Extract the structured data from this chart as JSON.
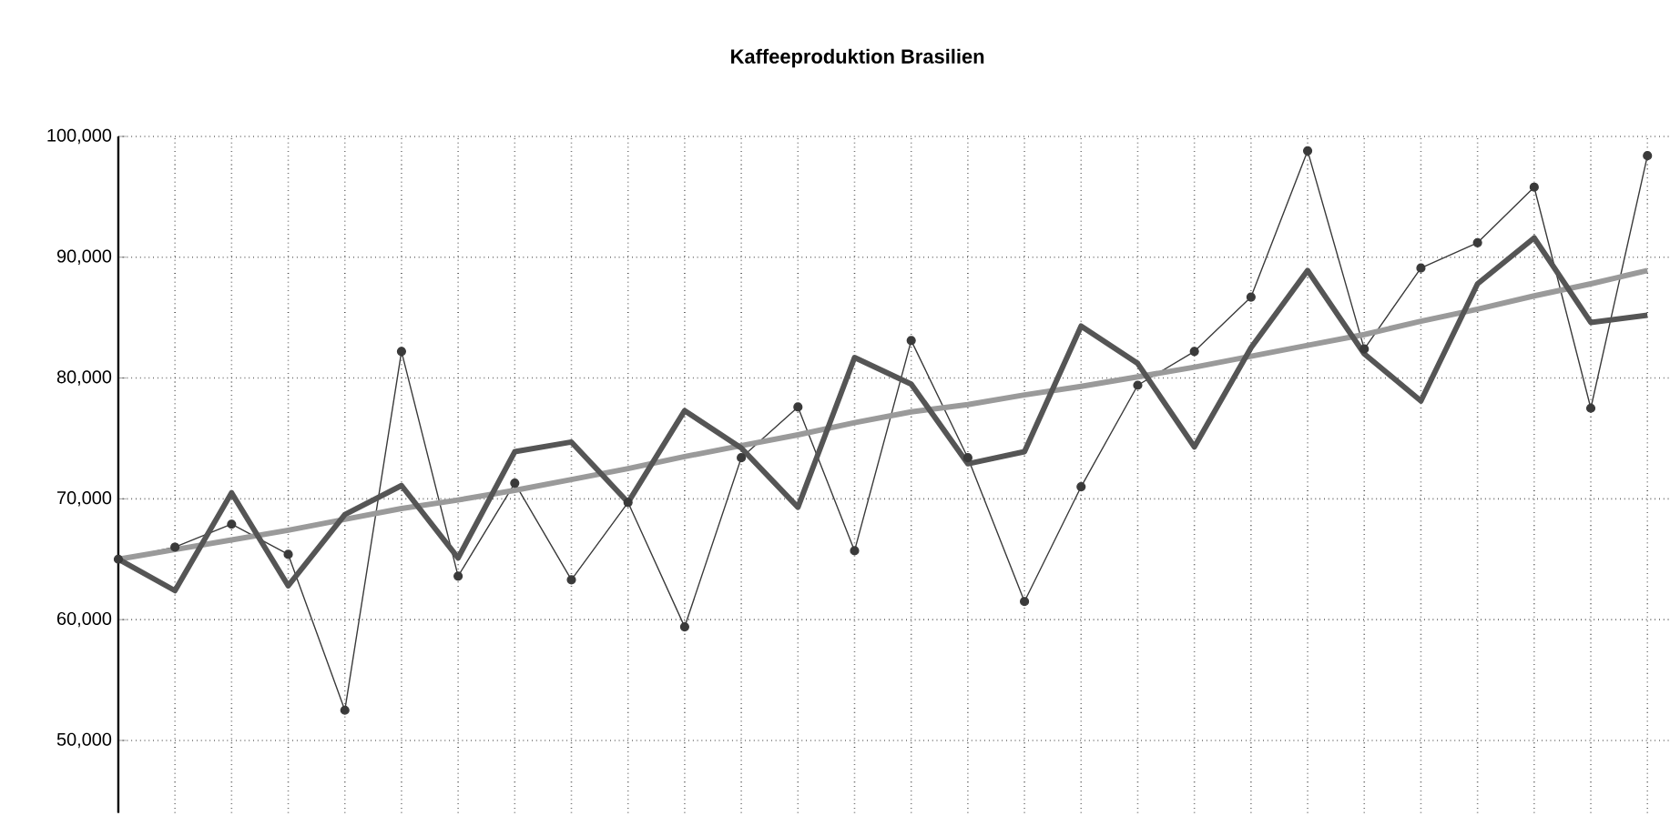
{
  "chart_data": {
    "type": "line",
    "title": "Kaffeeproduktion Brasilien",
    "categories": [
      null,
      null,
      null,
      null,
      null,
      null,
      null,
      null,
      null,
      null,
      null,
      null,
      null,
      null,
      null,
      null,
      null,
      null,
      null,
      null,
      null,
      null,
      null,
      null,
      null,
      null,
      null,
      null
    ],
    "series": [
      {
        "color": "#3a3a3a",
        "marker": "circle",
        "values": [
          65000,
          66000,
          67900,
          65400,
          52500,
          82200,
          63600,
          71300,
          63300,
          69700,
          59400,
          73400,
          77600,
          65700,
          83100,
          73400,
          61500,
          71000,
          79400,
          82200,
          86700,
          98800,
          82400,
          89100,
          91200,
          95800,
          77500,
          98400
        ]
      },
      {
        "color": "#9a9a9a",
        "values": [
          65000,
          65800,
          66600,
          67400,
          68300,
          69200,
          69900,
          70700,
          71600,
          72500,
          73500,
          74400,
          75300,
          76300,
          77200,
          77800,
          78600,
          79300,
          80100,
          80900,
          81800,
          82700,
          83600,
          84700,
          85700,
          86800,
          87800,
          88900
        ]
      },
      {
        "color": "#555555",
        "values": [
          65000,
          62400,
          70500,
          62800,
          68700,
          71100,
          65100,
          73900,
          74700,
          69700,
          77300,
          74200,
          69300,
          81700,
          79500,
          72900,
          73900,
          84300,
          81200,
          74300,
          82500,
          88900,
          82000,
          78100,
          87800,
          91600,
          84600,
          85200
        ]
      }
    ],
    "ylim": [
      44000,
      100000
    ],
    "yticks": [
      {
        "value": 50000,
        "label": "50,000"
      },
      {
        "value": 60000,
        "label": "60,000"
      },
      {
        "value": 70000,
        "label": "70,000"
      },
      {
        "value": 80000,
        "label": "80,000"
      },
      {
        "value": 90000,
        "label": "90,000"
      },
      {
        "value": 100000,
        "label": "100,000"
      }
    ],
    "tick_labels": "y",
    "grid": true
  }
}
